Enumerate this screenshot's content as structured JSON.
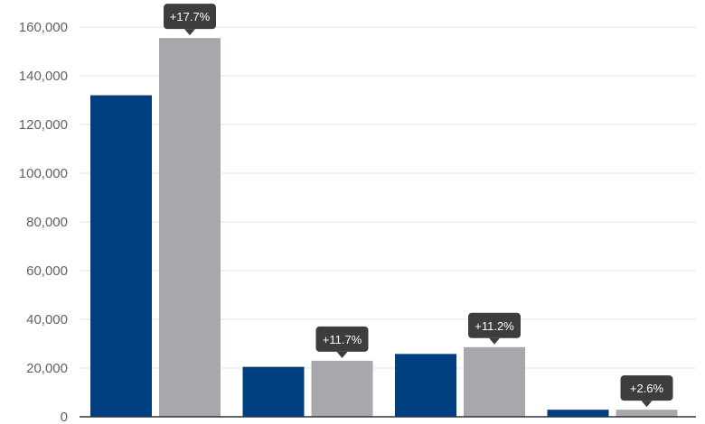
{
  "chart_data": {
    "type": "bar",
    "title": "",
    "xlabel": "",
    "ylabel": "",
    "categories": [
      "",
      "",
      "",
      ""
    ],
    "ylim": [
      0,
      160000
    ],
    "yticks": [
      0,
      20000,
      40000,
      60000,
      80000,
      100000,
      120000,
      140000,
      160000
    ],
    "ytick_labels": [
      "0",
      "20,000",
      "40,000",
      "60,000",
      "80,000",
      "100,000",
      "120,000",
      "140,000",
      "160,000"
    ],
    "grid": true,
    "series": [
      {
        "color": "#003f7f",
        "values": [
          132000,
          20500,
          25800,
          2900
        ]
      },
      {
        "color": "#a7a8ab",
        "values": [
          155500,
          23000,
          28600,
          2900
        ]
      }
    ],
    "annotations": [
      "+17.7%",
      "+11.7%",
      "+11.2%",
      "+2.6%"
    ],
    "annotation_color": "#3d3d3d"
  }
}
